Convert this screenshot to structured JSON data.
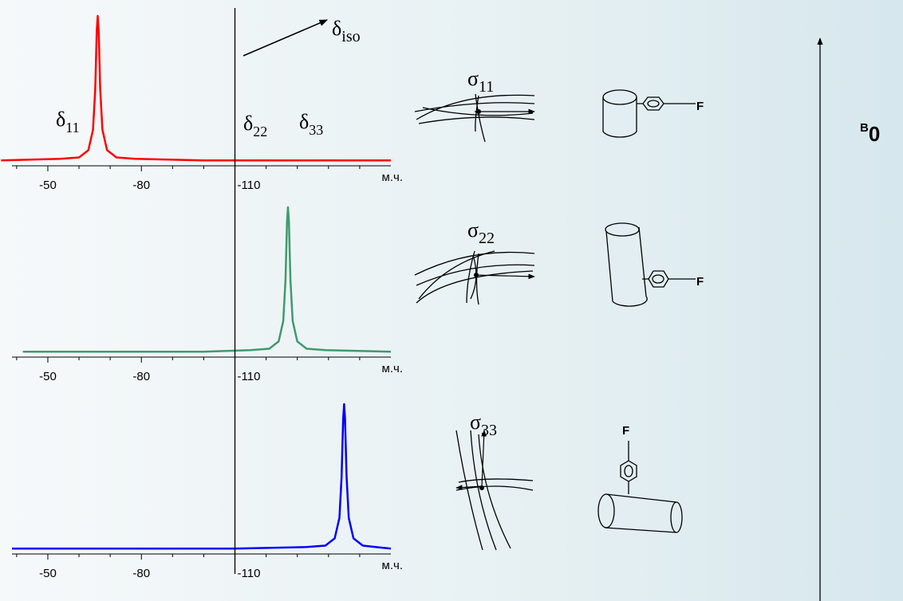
{
  "chart_data": [
    {
      "type": "line",
      "color": "#ff0000",
      "peak_label": "δ",
      "peak_label_sub": "11",
      "x_unit": "м.ч.",
      "x": [
        -35,
        -54,
        -60,
        -63,
        -64.5,
        -65.2,
        -65.7,
        -66,
        -66.3,
        -66.8,
        -67.5,
        -69,
        -72,
        -78,
        -100,
        -160
      ],
      "values": [
        1,
        2,
        3,
        8,
        22,
        50,
        90,
        100,
        90,
        50,
        22,
        8,
        3,
        2,
        1,
        1
      ],
      "xlim": [
        -38.5,
        -160
      ],
      "ylim": [
        0,
        100
      ],
      "xticks": [
        -50,
        -80,
        -110
      ],
      "xticks_minor": [
        -40,
        -60,
        -70,
        -90,
        -100,
        -120,
        -130,
        -140,
        -150
      ]
    },
    {
      "type": "line",
      "color": "#3f9a6e",
      "peak_label": "δ",
      "peak_label_sub": "22",
      "x_unit": "м.ч.",
      "x": [
        -42,
        -100,
        -115,
        -121,
        -124,
        -125.5,
        -126.2,
        -126.7,
        -127,
        -127.3,
        -127.8,
        -128.5,
        -130,
        -133,
        -139,
        -160
      ],
      "values": [
        1,
        1,
        2,
        3,
        8,
        22,
        50,
        90,
        100,
        90,
        50,
        22,
        8,
        3,
        2,
        1
      ],
      "xlim": [
        -38.5,
        -160
      ],
      "ylim": [
        0,
        100
      ],
      "xticks": [
        -50,
        -80,
        -110
      ],
      "xticks_minor": [
        -40,
        -60,
        -70,
        -90,
        -100,
        -120,
        -130,
        -140,
        -150
      ]
    },
    {
      "type": "line",
      "color": "#0000ff",
      "peak_label": "δ",
      "peak_label_sub": "33",
      "x_unit": "м.ч.",
      "x": [
        -38.5,
        -110,
        -133,
        -139,
        -142,
        -143.5,
        -144.2,
        -144.7,
        -145,
        -145.3,
        -145.8,
        -146.5,
        -148,
        -151,
        -155,
        -160
      ],
      "values": [
        1,
        1,
        2,
        3,
        8,
        22,
        50,
        90,
        100,
        90,
        50,
        22,
        8,
        3,
        2,
        1
      ],
      "xlim": [
        -38.5,
        -160
      ],
      "ylim": [
        0,
        100
      ],
      "xticks": [
        -50,
        -80,
        -110
      ],
      "xticks_minor": [
        -40,
        -60,
        -70,
        -90,
        -100,
        -120,
        -130,
        -140,
        -150
      ]
    }
  ],
  "iso_line": {
    "value": -110,
    "symbol": "δ",
    "sub": "iso"
  },
  "orientations": [
    {
      "symbol": "σ",
      "sub": "11",
      "substituent": "F"
    },
    {
      "symbol": "σ",
      "sub": "22",
      "substituent": "F"
    },
    {
      "symbol": "σ",
      "sub": "33",
      "substituent": "F"
    }
  ],
  "field": {
    "symbol": "B",
    "sub": "0"
  }
}
